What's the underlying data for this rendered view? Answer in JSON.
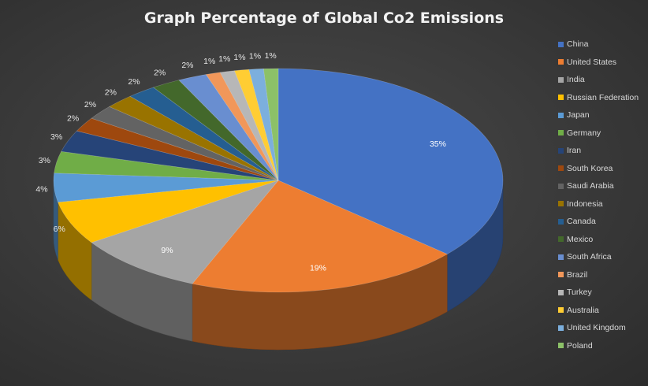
{
  "chart_data": {
    "type": "pie",
    "title": "Graph Percentage of Global Co2 Emissions",
    "legend_position": "right",
    "categories": [
      "China",
      "United States",
      "India",
      "Russian Federation",
      "Japan",
      "Germany",
      "Iran",
      "South Korea",
      "Saudi Arabia",
      "Indonesia",
      "Canada",
      "Mexico",
      "South Africa",
      "Brazil",
      "Turkey",
      "Australia",
      "United Kingdom",
      "Poland"
    ],
    "values": [
      35,
      19,
      9,
      6,
      4,
      3,
      3,
      2,
      2,
      2,
      2,
      2,
      2,
      1,
      1,
      1,
      1,
      1
    ],
    "data_labels": [
      "35%",
      "19%",
      "9%",
      "6%",
      "4%",
      "3%",
      "3%",
      "2%",
      "2%",
      "2%",
      "2%",
      "2%",
      "2%",
      "1%",
      "1%",
      "1%",
      "1%",
      "1%"
    ],
    "colors": [
      "#4472C4",
      "#ED7D31",
      "#A5A5A5",
      "#FFC000",
      "#5B9BD5",
      "#70AD47",
      "#264478",
      "#9E480E",
      "#636363",
      "#997300",
      "#255E91",
      "#43682B",
      "#698ED0",
      "#F1975A",
      "#B7B7B7",
      "#FFCD33",
      "#7CAFDD",
      "#8CC168"
    ]
  }
}
